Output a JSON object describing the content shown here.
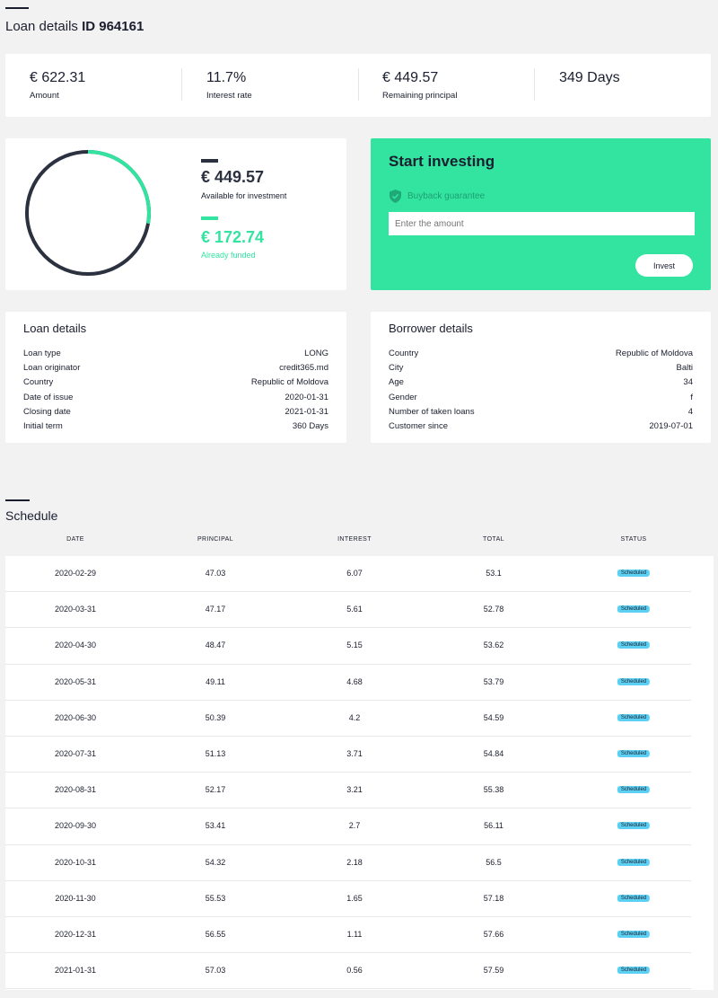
{
  "page": {
    "title": "Loan details",
    "title_id": "ID 964161"
  },
  "summary": [
    {
      "value": "€ 622.31",
      "label": "Amount"
    },
    {
      "value": "11.7%",
      "label": "Interest rate"
    },
    {
      "value": "€ 449.57",
      "label": "Remaining principal"
    },
    {
      "value": "349 Days",
      "label": ""
    }
  ],
  "funding": {
    "available_amount": "€ 449.57",
    "available_label": "Available for investment",
    "funded_amount": "€ 172.74",
    "funded_label": "Already funded",
    "funded_fraction": 0.2776,
    "colors": {
      "available": "#2c3140",
      "funded": "#32e4a0"
    }
  },
  "invest": {
    "title": "Start investing",
    "guarantee": "Buyback guarantee",
    "amount_placeholder": "Enter the amount",
    "button": "Invest",
    "color": "#32e4a0"
  },
  "loan_details": {
    "title": "Loan details",
    "rows": [
      {
        "k": "Loan type",
        "v": "LONG"
      },
      {
        "k": "Loan originator",
        "v": "credit365.md"
      },
      {
        "k": "Country",
        "v": "Republic of Moldova"
      },
      {
        "k": "Date of issue",
        "v": "2020-01-31"
      },
      {
        "k": "Closing date",
        "v": "2021-01-31"
      },
      {
        "k": "Initial term",
        "v": "360 Days"
      }
    ]
  },
  "borrower_details": {
    "title": "Borrower details",
    "rows": [
      {
        "k": "Country",
        "v": "Republic of Moldova"
      },
      {
        "k": "City",
        "v": "Balti"
      },
      {
        "k": "Age",
        "v": "34"
      },
      {
        "k": "Gender",
        "v": "f"
      },
      {
        "k": "Number of taken loans",
        "v": "4"
      },
      {
        "k": "Customer since",
        "v": "2019-07-01"
      }
    ]
  },
  "schedule": {
    "title": "Schedule",
    "columns": [
      "DATE",
      "PRINCIPAL",
      "INTEREST",
      "TOTAL",
      "STATUS"
    ],
    "rows": [
      [
        "2020-02-29",
        "47.03",
        "6.07",
        "53.1",
        "Scheduled"
      ],
      [
        "2020-03-31",
        "47.17",
        "5.61",
        "52.78",
        "Scheduled"
      ],
      [
        "2020-04-30",
        "48.47",
        "5.15",
        "53.62",
        "Scheduled"
      ],
      [
        "2020-05-31",
        "49.11",
        "4.68",
        "53.79",
        "Scheduled"
      ],
      [
        "2020-06-30",
        "50.39",
        "4.2",
        "54.59",
        "Scheduled"
      ],
      [
        "2020-07-31",
        "51.13",
        "3.71",
        "54.84",
        "Scheduled"
      ],
      [
        "2020-08-31",
        "52.17",
        "3.21",
        "55.38",
        "Scheduled"
      ],
      [
        "2020-09-30",
        "53.41",
        "2.7",
        "56.11",
        "Scheduled"
      ],
      [
        "2020-10-31",
        "54.32",
        "2.18",
        "56.5",
        "Scheduled"
      ],
      [
        "2020-11-30",
        "55.53",
        "1.65",
        "57.18",
        "Scheduled"
      ],
      [
        "2020-12-31",
        "56.55",
        "1.11",
        "57.66",
        "Scheduled"
      ],
      [
        "2021-01-31",
        "57.03",
        "0.56",
        "57.59",
        "Scheduled"
      ]
    ],
    "status_color": "#5cd0f2"
  }
}
